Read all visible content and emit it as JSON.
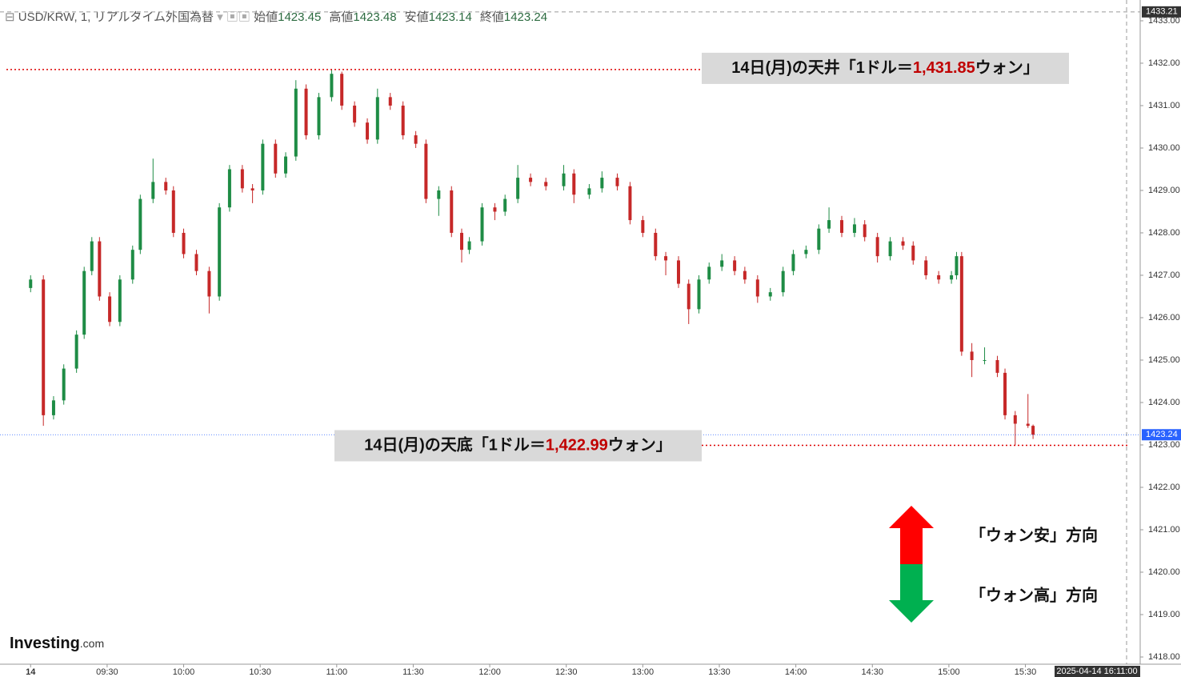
{
  "header": {
    "symbol": "USD/KRW, 1, リアルタイム外国為替",
    "open_label": "始値",
    "high_label": "高値",
    "low_label": "安値",
    "close_label": "終値"
  },
  "chart_data": {
    "type": "candlestick",
    "up_color": "#1e8c45",
    "down_color": "#c62828",
    "x": [
      "09:00",
      "09:05",
      "09:09",
      "09:13",
      "09:18",
      "09:21",
      "09:24",
      "09:27",
      "09:31",
      "09:35",
      "09:40",
      "09:43",
      "09:48",
      "09:53",
      "09:56",
      "10:00",
      "10:05",
      "10:10",
      "10:14",
      "10:18",
      "10:23",
      "10:27",
      "10:31",
      "10:36",
      "10:40",
      "10:44",
      "10:48",
      "10:53",
      "10:58",
      "11:02",
      "11:07",
      "11:12",
      "11:16",
      "11:21",
      "11:26",
      "11:31",
      "11:35",
      "11:40",
      "11:45",
      "11:49",
      "11:52",
      "11:57",
      "12:02",
      "12:06",
      "12:11",
      "12:16",
      "12:22",
      "12:29",
      "12:33",
      "12:39",
      "12:44",
      "12:50",
      "12:55",
      "13:00",
      "13:05",
      "13:09",
      "13:14",
      "13:18",
      "13:22",
      "13:26",
      "13:31",
      "13:36",
      "13:40",
      "13:45",
      "13:50",
      "13:55",
      "13:59",
      "14:04",
      "14:09",
      "14:13",
      "14:18",
      "14:23",
      "14:27",
      "14:32",
      "14:37",
      "14:42",
      "14:46",
      "14:51",
      "14:56",
      "15:01",
      "15:03",
      "15:05",
      "15:09",
      "15:14",
      "15:19",
      "15:22",
      "15:26",
      "15:31",
      "15:33"
    ],
    "open": [
      1426.7,
      1426.9,
      1423.7,
      1424.05,
      1424.8,
      1425.6,
      1427.1,
      1427.8,
      1426.5,
      1425.9,
      1426.9,
      1427.6,
      1428.8,
      1429.2,
      1429,
      1428,
      1427.5,
      1427.1,
      1426.5,
      1428.6,
      1429.5,
      1429.05,
      1429,
      1430.1,
      1429.4,
      1429.8,
      1431.4,
      1430.3,
      1431.2,
      1431.75,
      1431,
      1430.6,
      1430.2,
      1431.2,
      1431,
      1430.3,
      1430.1,
      1428.8,
      1429,
      1428,
      1427.6,
      1427.8,
      1428.6,
      1428.5,
      1428.8,
      1429.3,
      1429.2,
      1429.1,
      1429.4,
      1428.9,
      1429.05,
      1429.3,
      1429.1,
      1428.3,
      1428,
      1427.45,
      1427.35,
      1426.8,
      1426.2,
      1426.9,
      1427.2,
      1427.35,
      1427.1,
      1426.9,
      1426.5,
      1426.6,
      1427.1,
      1427.5,
      1427.6,
      1428.1,
      1428.3,
      1428,
      1428.2,
      1427.9,
      1427.45,
      1427.8,
      1427.7,
      1427.35,
      1427,
      1426.9,
      1427,
      1427.45,
      1425.2,
      1425,
      1425,
      1424.7,
      1423.7,
      1423.5,
      1423.45
    ],
    "high": [
      1427,
      1427,
      1424.15,
      1424.9,
      1425.7,
      1427.2,
      1427.9,
      1427.9,
      1426.6,
      1427,
      1427.7,
      1428.9,
      1429.75,
      1429.3,
      1429.1,
      1428.1,
      1427.6,
      1427.2,
      1428.7,
      1429.6,
      1429.6,
      1429.15,
      1430.2,
      1430.2,
      1429.9,
      1431.6,
      1431.5,
      1431.3,
      1431.85,
      1431.8,
      1431.1,
      1430.7,
      1431.4,
      1431.3,
      1431.1,
      1430.4,
      1430.2,
      1429.1,
      1429.1,
      1428.1,
      1427.9,
      1428.7,
      1428.7,
      1428.9,
      1429.6,
      1429.4,
      1429.3,
      1429.6,
      1429.5,
      1429.15,
      1429.45,
      1429.4,
      1429.2,
      1428.4,
      1428.1,
      1427.55,
      1427.45,
      1426.9,
      1427,
      1427.3,
      1427.5,
      1427.45,
      1427.2,
      1427,
      1426.7,
      1427.2,
      1427.6,
      1427.7,
      1428.2,
      1428.6,
      1428.4,
      1428.35,
      1428.3,
      1428,
      1427.9,
      1427.9,
      1427.8,
      1427.45,
      1427.1,
      1427.1,
      1427.55,
      1427.55,
      1425.4,
      1425.3,
      1425.1,
      1424.8,
      1423.8,
      1424.2,
      1423.48
    ],
    "low": [
      1426.6,
      1423.45,
      1423.6,
      1423.95,
      1424.7,
      1425.5,
      1427,
      1426.4,
      1425.8,
      1425.8,
      1426.8,
      1427.5,
      1428.7,
      1428.9,
      1427.9,
      1427.4,
      1427,
      1426.1,
      1426.4,
      1428.5,
      1428.95,
      1428.7,
      1428.9,
      1429.3,
      1429.3,
      1429.7,
      1430.2,
      1430.2,
      1431.1,
      1430.9,
      1430.5,
      1430.1,
      1430.1,
      1430.9,
      1430.2,
      1430,
      1428.7,
      1428.4,
      1427.9,
      1427.3,
      1427.5,
      1427.7,
      1428.3,
      1428.4,
      1428.7,
      1429.1,
      1429,
      1429,
      1428.7,
      1428.8,
      1428.95,
      1429,
      1428.2,
      1427.9,
      1427.35,
      1427,
      1426.7,
      1425.85,
      1426.1,
      1426.8,
      1427.1,
      1427,
      1426.8,
      1426.35,
      1426.4,
      1426.5,
      1427,
      1427.4,
      1427.5,
      1428,
      1427.9,
      1427.9,
      1427.8,
      1427.3,
      1427.35,
      1427.6,
      1427.25,
      1426.9,
      1426.8,
      1426.8,
      1426.9,
      1425.1,
      1424.6,
      1424.9,
      1424.6,
      1423.6,
      1422.99,
      1423.4,
      1423.14
    ],
    "close": [
      1426.9,
      1423.7,
      1424.05,
      1424.8,
      1425.6,
      1427.1,
      1427.8,
      1426.5,
      1425.9,
      1426.9,
      1427.6,
      1428.8,
      1429.2,
      1429,
      1428,
      1427.5,
      1427.1,
      1426.5,
      1428.6,
      1429.5,
      1429.05,
      1429,
      1430.1,
      1429.4,
      1429.8,
      1431.4,
      1430.3,
      1431.2,
      1431.75,
      1431,
      1430.6,
      1430.2,
      1431.2,
      1431,
      1430.3,
      1430.1,
      1428.8,
      1429,
      1428,
      1427.6,
      1427.8,
      1428.6,
      1428.5,
      1428.8,
      1429.3,
      1429.2,
      1429.1,
      1429.4,
      1428.9,
      1429.05,
      1429.3,
      1429.1,
      1428.3,
      1428,
      1427.45,
      1427.35,
      1426.8,
      1426.2,
      1426.9,
      1427.2,
      1427.35,
      1427.1,
      1426.9,
      1426.5,
      1426.6,
      1427.1,
      1427.5,
      1427.6,
      1428.1,
      1428.3,
      1428,
      1428.2,
      1427.9,
      1427.45,
      1427.8,
      1427.7,
      1427.35,
      1427,
      1426.9,
      1427,
      1427.45,
      1425.2,
      1425,
      1425,
      1424.7,
      1423.7,
      1423.5,
      1423.45,
      1423.24
    ],
    "xlim": [
      "08:48",
      "16:15"
    ],
    "xticks": [
      {
        "value": "09:00",
        "label": "14"
      },
      "09:30",
      "10:00",
      "10:30",
      "11:00",
      "11:30",
      "12:00",
      "12:30",
      "13:00",
      "13:30",
      "14:00",
      "14:30",
      "15:00",
      "15:30"
    ],
    "ylim": [
      1417.83,
      1433.49
    ],
    "yticks": [
      {
        "value": 1418,
        "label": "1418.00"
      },
      {
        "value": 1419,
        "label": "1419.00"
      },
      {
        "value": 1420,
        "label": "1420.00"
      },
      {
        "value": 1421,
        "label": "1421.00"
      },
      {
        "value": 1422,
        "label": "1422.00"
      },
      {
        "value": 1423,
        "label": "1423.00"
      },
      {
        "value": 1424,
        "label": "1424.00"
      },
      {
        "value": 1425,
        "label": "1425.00"
      },
      {
        "value": 1426,
        "label": "1426.00"
      },
      {
        "value": 1427,
        "label": "1427.00"
      },
      {
        "value": 1428,
        "label": "1428.00"
      },
      {
        "value": 1429,
        "label": "1429.00"
      },
      {
        "value": 1430,
        "label": "1430.00"
      },
      {
        "value": 1431,
        "label": "1431.00"
      },
      {
        "value": 1432,
        "label": "1432.00"
      },
      {
        "value": 1433,
        "label": "1433.00"
      }
    ],
    "crosshair_price": 1433.21,
    "crosshair_time": "2025-04-14 16:11:00",
    "levels": [
      {
        "text_before": "14日(月)の天井「1ドル＝",
        "value": 1431.85,
        "value_label": "1,431.85",
        "text_after": "ウォン」"
      },
      {
        "text_before": "14日(月)の天底「1ドル＝",
        "value": 1422.99,
        "value_label": "1,422.99",
        "text_after": "ウォン」"
      }
    ],
    "direction_labels": [
      "「ウォン安」方向",
      "「ウォン高」方向"
    ]
  },
  "logo": {
    "brand": "Investing",
    "suffix": ".com"
  }
}
